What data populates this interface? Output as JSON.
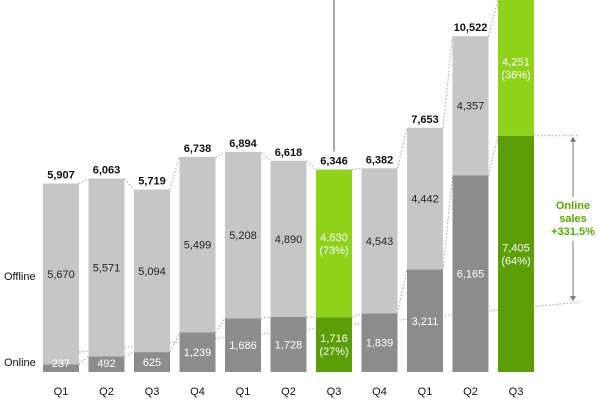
{
  "chart_data": {
    "type": "bar",
    "stacked": true,
    "categories": [
      "Q1",
      "Q2",
      "Q3",
      "Q4",
      "Q1",
      "Q2",
      "Q3",
      "Q4",
      "Q1",
      "Q2",
      "Q3"
    ],
    "series": [
      {
        "name": "Online",
        "values": [
          237,
          492,
          625,
          1239,
          1686,
          1728,
          1716,
          1839,
          3211,
          6165,
          7405
        ],
        "labels": [
          "237",
          "492",
          "625",
          "1,239",
          "1,686",
          "1,728",
          "1,716\n(27%)",
          "1,839",
          "3,211",
          "6,165",
          "7,405\n(64%)"
        ]
      },
      {
        "name": "Offline",
        "values": [
          5670,
          5571,
          5094,
          5499,
          5208,
          4890,
          4630,
          4543,
          4442,
          4357,
          4251
        ],
        "labels": [
          "5,670",
          "5,571",
          "5,094",
          "5,499",
          "5,208",
          "4,890",
          "4,630\n(73%)",
          "4,543",
          "4,442",
          "4,357",
          "4,251\n(36%)"
        ]
      }
    ],
    "totals": [
      "5,907",
      "6,063",
      "5,719",
      "6,738",
      "6,894",
      "6,618",
      "6,346",
      "6,382",
      "7,653",
      "10,522",
      ""
    ],
    "highlighted_indices": [
      6,
      10
    ],
    "ylim": [
      0,
      11656
    ],
    "grid": false,
    "legend": "none",
    "colors": {
      "online": "#8c8c8c",
      "offline": "#c6c6c6",
      "online_highlight": "#5c9e0a",
      "offline_highlight": "#8fd21c",
      "annotation": "#5aa800"
    },
    "annotation": {
      "lines": [
        "Online",
        "sales",
        "+331.5%"
      ],
      "from_index": 0,
      "to_index": 10
    }
  },
  "row_labels": {
    "offline": "Offline",
    "online": "Online"
  }
}
